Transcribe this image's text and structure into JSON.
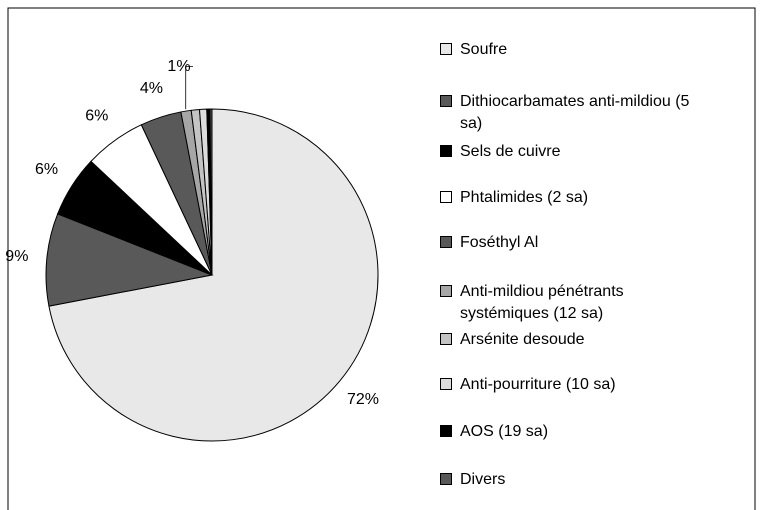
{
  "chart_data": {
    "type": "pie",
    "categories": [
      "Soufre",
      "Dithiocarbamates anti-mildiou (5 sa)",
      "Sels de cuivre",
      "Phtalimides (2 sa)",
      "Foséthyl Al",
      "Anti-mildiou pénétrants systémiques (12 sa)",
      "Arsénite desoude",
      "Anti-pourriture (10 sa)",
      "AOS (19 sa)",
      "Divers"
    ],
    "values": [
      72,
      9,
      6,
      6,
      4,
      1,
      0.8,
      0.7,
      0.3,
      0.2
    ],
    "value_labels": [
      "72%",
      "9%",
      "6%",
      "6%",
      "4%",
      "1%",
      null,
      null,
      null,
      null
    ],
    "colors": [
      "#e8e8e8",
      "#595959",
      "#000000",
      "#ffffff",
      "#595959",
      "#a6a6a6",
      "#c4c4c4",
      "#dcdcdc",
      "#000000",
      "#595959"
    ],
    "legend": "right"
  }
}
